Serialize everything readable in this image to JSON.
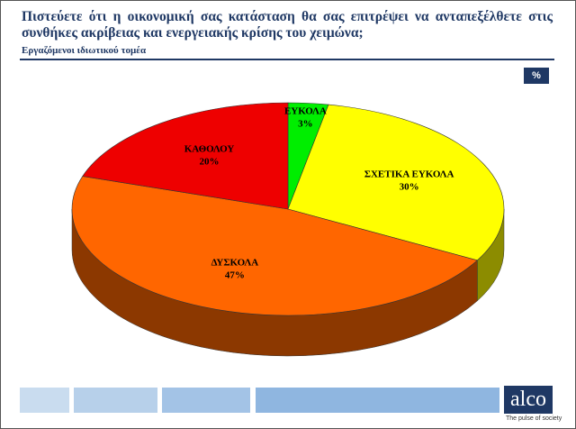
{
  "chart_data": {
    "type": "pie",
    "title": "Πιστεύετε ότι η οικονομική σας κατάσταση θα σας επιτρέψει να ανταπεξέλθετε στις συνθήκες ακρίβειας και ενεργειακής κρίσης του χειμώνα;",
    "subtitle": "Εργαζόμενοι ιδιωτικού τομέα",
    "categories": [
      "ΕΥΚΟΛΑ",
      "ΣΧΕΤΙΚΑ ΕΥΚΟΛΑ",
      "ΔΥΣΚΟΛΑ",
      "ΚΑΘΟΛΟΥ"
    ],
    "values": [
      3,
      30,
      47,
      20
    ],
    "value_labels": [
      "3%",
      "30%",
      "47%",
      "20%"
    ],
    "colors": [
      "#00ee00",
      "#ffff00",
      "#ff6600",
      "#ee0000"
    ]
  },
  "slide": {
    "unit_badge": "%",
    "logo": "alco",
    "tagline": "The pulse of society"
  }
}
